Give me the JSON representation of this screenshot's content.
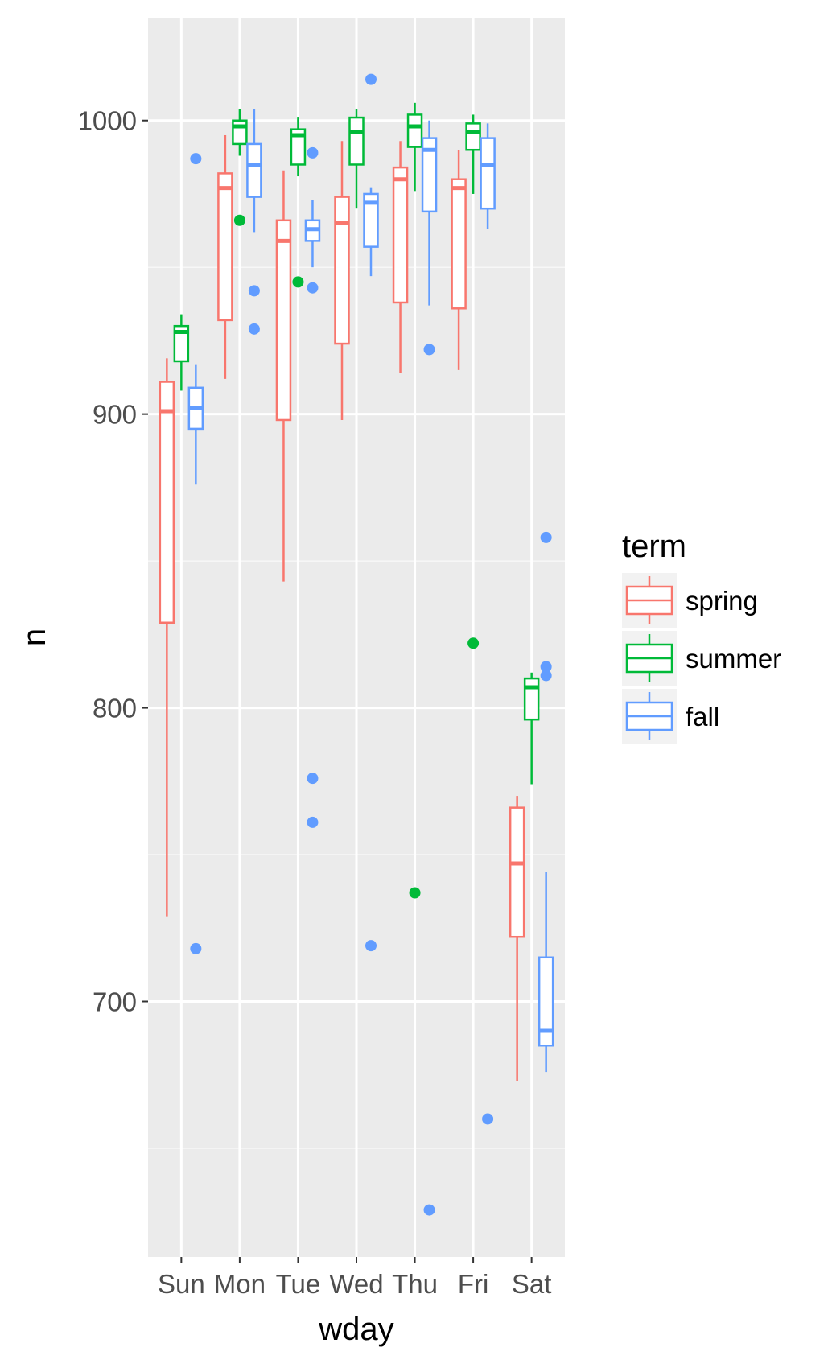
{
  "chart_data": {
    "type": "boxplot",
    "xlabel": "wday",
    "ylabel": "n",
    "categories": [
      "Sun",
      "Mon",
      "Tue",
      "Wed",
      "Thu",
      "Fri",
      "Sat"
    ],
    "ylim": [
      613,
      1035
    ],
    "y_ticks": [
      700,
      800,
      900,
      1000
    ],
    "y_minor_ticks": [
      650,
      750,
      850,
      950
    ],
    "grid": true,
    "legend": {
      "title": "term",
      "position": "right",
      "entries": [
        "spring",
        "summer",
        "fall"
      ]
    },
    "series": [
      {
        "name": "spring",
        "color": "#F8766D",
        "boxes": [
          {
            "category": "Sun",
            "lower_whisker": 729,
            "q1": 829,
            "median": 901,
            "q3": 911,
            "upper_whisker": 919,
            "outliers": []
          },
          {
            "category": "Mon",
            "lower_whisker": 912,
            "q1": 932,
            "median": 977,
            "q3": 982,
            "upper_whisker": 995,
            "outliers": []
          },
          {
            "category": "Tue",
            "lower_whisker": 843,
            "q1": 898,
            "median": 959,
            "q3": 966,
            "upper_whisker": 983,
            "outliers": []
          },
          {
            "category": "Wed",
            "lower_whisker": 898,
            "q1": 924,
            "median": 965,
            "q3": 974,
            "upper_whisker": 993,
            "outliers": []
          },
          {
            "category": "Thu",
            "lower_whisker": 914,
            "q1": 938,
            "median": 980,
            "q3": 984,
            "upper_whisker": 993,
            "outliers": []
          },
          {
            "category": "Fri",
            "lower_whisker": 915,
            "q1": 936,
            "median": 977,
            "q3": 980,
            "upper_whisker": 990,
            "outliers": []
          },
          {
            "category": "Sat",
            "lower_whisker": 673,
            "q1": 722,
            "median": 747,
            "q3": 766,
            "upper_whisker": 770,
            "outliers": []
          }
        ]
      },
      {
        "name": "summer",
        "color": "#00BA38",
        "boxes": [
          {
            "category": "Sun",
            "lower_whisker": 908,
            "q1": 918,
            "median": 928,
            "q3": 930,
            "upper_whisker": 934,
            "outliers": []
          },
          {
            "category": "Mon",
            "lower_whisker": 988,
            "q1": 992,
            "median": 998,
            "q3": 1000,
            "upper_whisker": 1004,
            "outliers": [
              966
            ]
          },
          {
            "category": "Tue",
            "lower_whisker": 981,
            "q1": 985,
            "median": 995,
            "q3": 997,
            "upper_whisker": 1001,
            "outliers": [
              945
            ]
          },
          {
            "category": "Wed",
            "lower_whisker": 970,
            "q1": 985,
            "median": 996,
            "q3": 1001,
            "upper_whisker": 1004,
            "outliers": []
          },
          {
            "category": "Thu",
            "lower_whisker": 976,
            "q1": 991,
            "median": 998,
            "q3": 1002,
            "upper_whisker": 1006,
            "outliers": [
              737
            ]
          },
          {
            "category": "Fri",
            "lower_whisker": 975,
            "q1": 990,
            "median": 996,
            "q3": 999,
            "upper_whisker": 1002,
            "outliers": [
              822
            ]
          },
          {
            "category": "Sat",
            "lower_whisker": 774,
            "q1": 796,
            "median": 807,
            "q3": 810,
            "upper_whisker": 812,
            "outliers": []
          }
        ]
      },
      {
        "name": "fall",
        "color": "#619CFF",
        "boxes": [
          {
            "category": "Sun",
            "lower_whisker": 876,
            "q1": 895,
            "median": 902,
            "q3": 909,
            "upper_whisker": 917,
            "outliers": [
              987,
              718
            ]
          },
          {
            "category": "Mon",
            "lower_whisker": 962,
            "q1": 974,
            "median": 985,
            "q3": 992,
            "upper_whisker": 1004,
            "outliers": [
              942,
              929
            ]
          },
          {
            "category": "Tue",
            "lower_whisker": 950,
            "q1": 959,
            "median": 963,
            "q3": 966,
            "upper_whisker": 973,
            "outliers": [
              989,
              943,
              776,
              761
            ]
          },
          {
            "category": "Wed",
            "lower_whisker": 947,
            "q1": 957,
            "median": 972,
            "q3": 975,
            "upper_whisker": 977,
            "outliers": [
              1014,
              719
            ]
          },
          {
            "category": "Thu",
            "lower_whisker": 937,
            "q1": 969,
            "median": 990,
            "q3": 994,
            "upper_whisker": 1000,
            "outliers": [
              922,
              629
            ]
          },
          {
            "category": "Fri",
            "lower_whisker": 963,
            "q1": 970,
            "median": 985,
            "q3": 994,
            "upper_whisker": 999,
            "outliers": [
              660
            ]
          },
          {
            "category": "Sat",
            "lower_whisker": 676,
            "q1": 685,
            "median": 690,
            "q3": 715,
            "upper_whisker": 744,
            "outliers": [
              858,
              814,
              811
            ]
          }
        ]
      }
    ]
  }
}
